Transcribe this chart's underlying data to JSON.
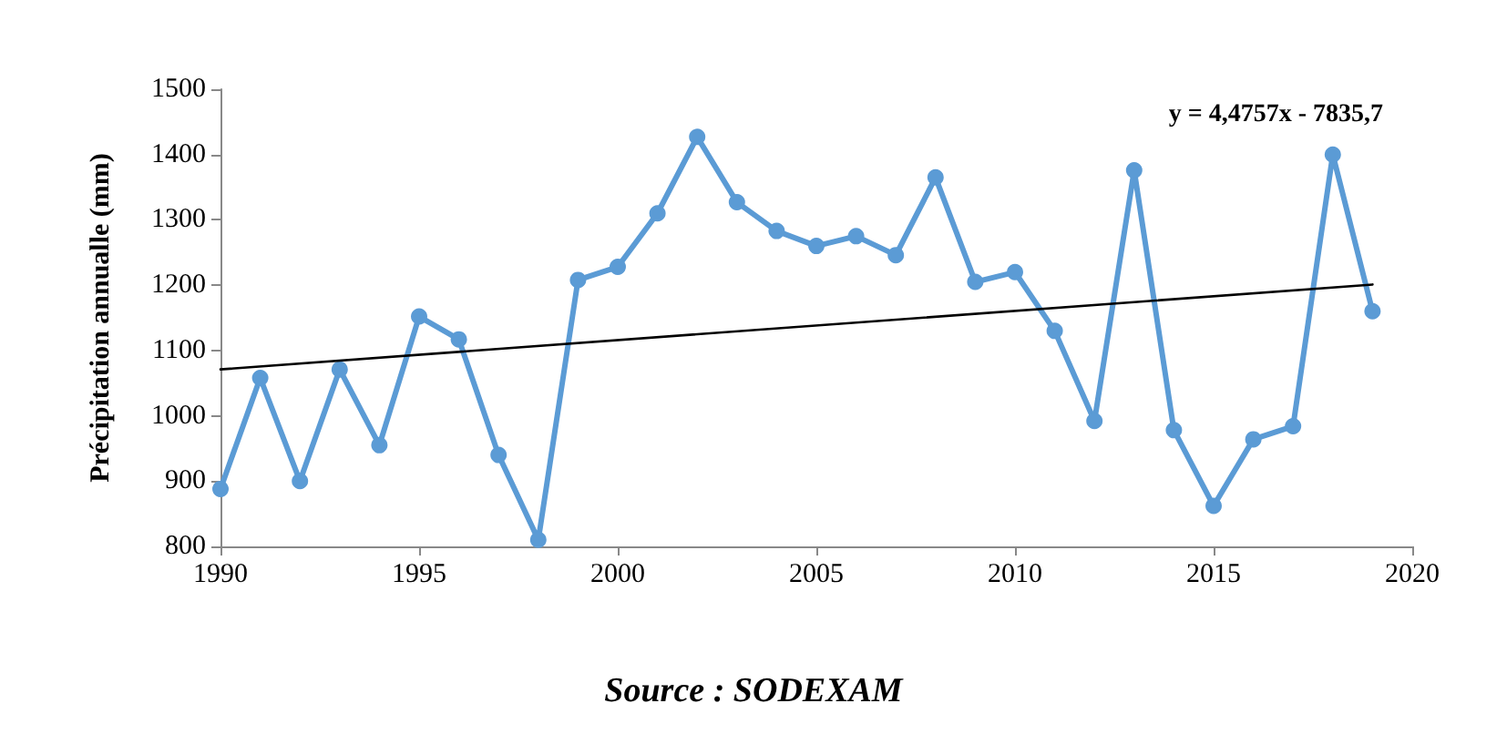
{
  "chart_data": {
    "type": "line",
    "ylabel": "Précipitation annualle (mm)",
    "xlim": [
      1990,
      2020
    ],
    "xticks": [
      1990,
      1995,
      2000,
      2005,
      2010,
      2015,
      2020
    ],
    "ylim": [
      800,
      1500
    ],
    "yticks": [
      800,
      900,
      1000,
      1100,
      1200,
      1300,
      1400,
      1500
    ],
    "marker": "circle",
    "line_style": "solid",
    "series": [
      {
        "color": "#5b9bd5",
        "x": [
          1990,
          1991,
          1992,
          1993,
          1994,
          1995,
          1996,
          1997,
          1998,
          1999,
          2000,
          2001,
          2002,
          2003,
          2004,
          2005,
          2006,
          2007,
          2008,
          2009,
          2010,
          2011,
          2012,
          2013,
          2014,
          2015,
          2016,
          2017,
          2018,
          2019
        ],
        "values": [
          888,
          1058,
          900,
          1071,
          955,
          1152,
          1117,
          940,
          810,
          1208,
          1228,
          1310,
          1427,
          1327,
          1283,
          1260,
          1275,
          1246,
          1365,
          1205,
          1220,
          1130,
          992,
          1376,
          978,
          862,
          964,
          984,
          1400,
          1160
        ]
      },
      {
        "type": "line",
        "color": "#000000",
        "marker": "none",
        "x": [
          1990,
          2019
        ],
        "values": [
          1071,
          1201
        ]
      }
    ],
    "annotations": [
      "y = 4,4757x - 7835,7",
      "Source : SODEXAM"
    ]
  }
}
